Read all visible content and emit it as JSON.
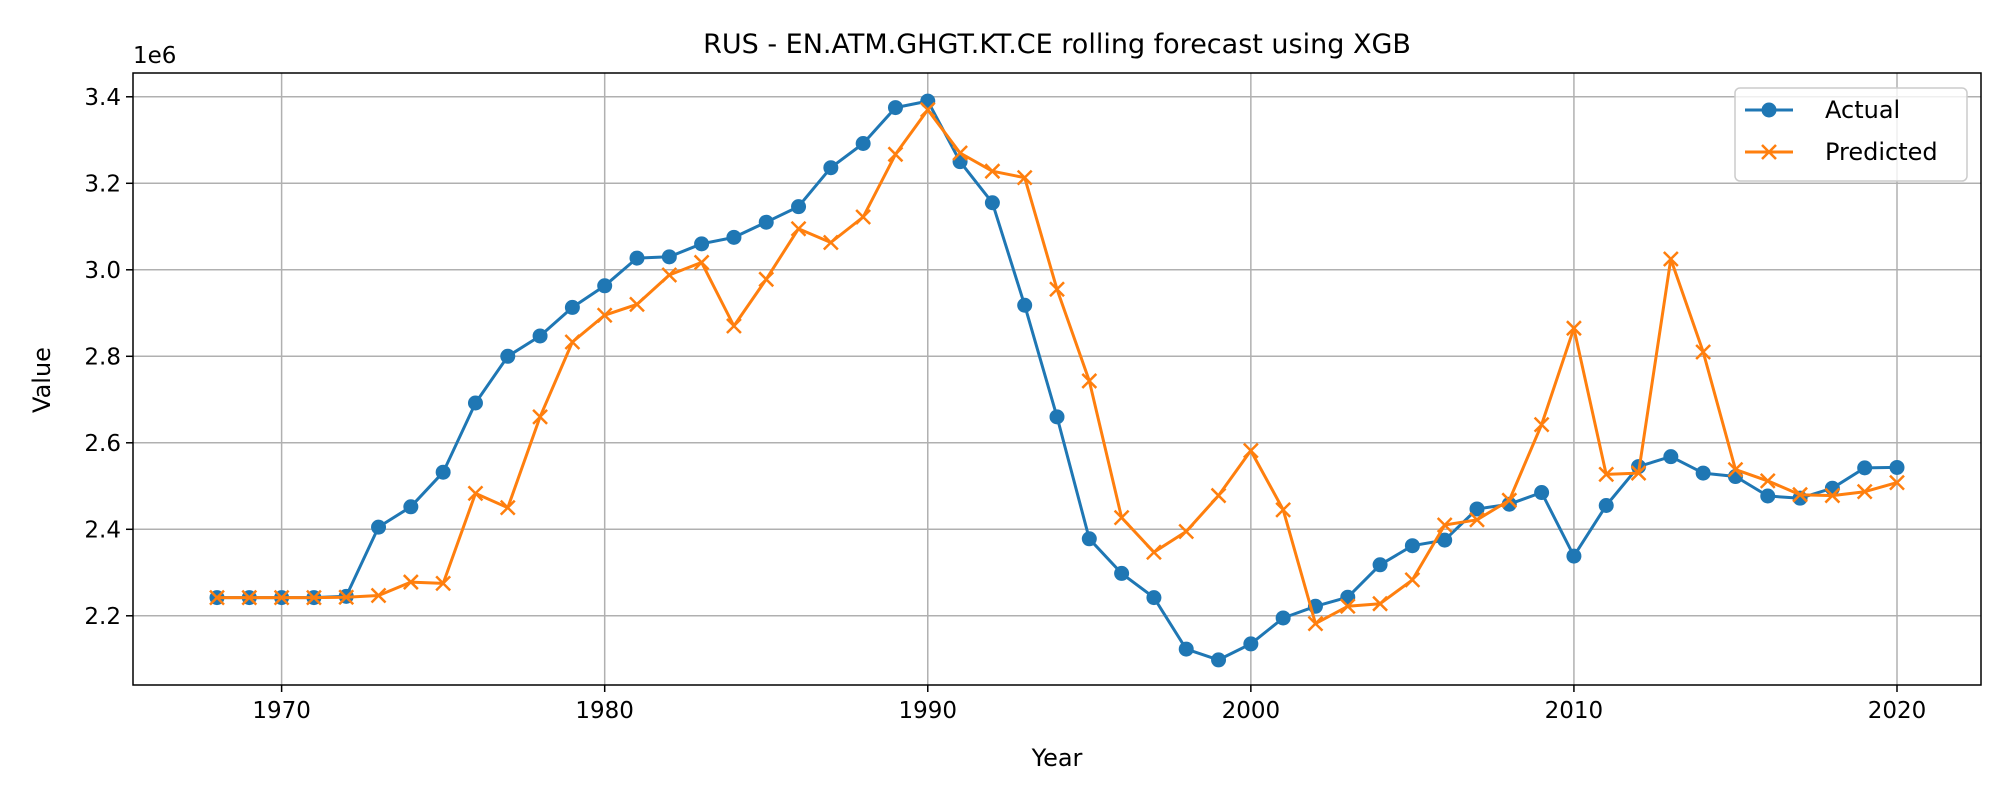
{
  "chart_data": {
    "type": "line",
    "title": "RUS - EN.ATM.GHGT.KT.CE rolling forecast using XGB",
    "xlabel": "Year",
    "ylabel": "Value",
    "y_multiplier_label": "1e6",
    "xlim": [
      1965.4,
      2022.6
    ],
    "ylim": [
      2.04,
      3.455
    ],
    "x_ticks": [
      1970,
      1980,
      1990,
      2000,
      2010,
      2020
    ],
    "y_ticks": [
      2.2,
      2.4,
      2.6,
      2.8,
      3.0,
      3.2,
      3.4
    ],
    "y_tick_labels": [
      "2.2",
      "2.4",
      "2.6",
      "2.8",
      "3.0",
      "3.2",
      "3.4"
    ],
    "grid": true,
    "legend_position": "upper right",
    "x": [
      1968,
      1969,
      1970,
      1971,
      1972,
      1973,
      1974,
      1975,
      1976,
      1977,
      1978,
      1979,
      1980,
      1981,
      1982,
      1983,
      1984,
      1985,
      1986,
      1987,
      1988,
      1989,
      1990,
      1991,
      1992,
      1993,
      1994,
      1995,
      1996,
      1997,
      1998,
      1999,
      2000,
      2001,
      2002,
      2003,
      2004,
      2005,
      2006,
      2007,
      2008,
      2009,
      2010,
      2011,
      2012,
      2013,
      2014,
      2015,
      2016,
      2017,
      2018,
      2019,
      2020
    ],
    "series": [
      {
        "name": "Actual",
        "color": "#1f77b4",
        "marker": "circle",
        "values": [
          2.242,
          2.242,
          2.242,
          2.242,
          2.245,
          2.405,
          2.452,
          2.532,
          2.692,
          2.8,
          2.847,
          2.913,
          2.963,
          3.027,
          3.03,
          3.06,
          3.075,
          3.11,
          3.146,
          3.236,
          3.292,
          3.375,
          3.39,
          3.25,
          3.155,
          2.918,
          2.66,
          2.378,
          2.298,
          2.242,
          2.123,
          2.098,
          2.135,
          2.195,
          2.222,
          2.243,
          2.318,
          2.362,
          2.375,
          2.447,
          2.458,
          2.485,
          2.338,
          2.455,
          2.545,
          2.568,
          2.53,
          2.522,
          2.477,
          2.472,
          2.495,
          2.542,
          2.543
        ]
      },
      {
        "name": "Predicted",
        "color": "#ff7f0e",
        "marker": "x",
        "values": [
          2.242,
          2.242,
          2.242,
          2.242,
          2.243,
          2.247,
          2.278,
          2.275,
          2.483,
          2.45,
          2.66,
          2.833,
          2.895,
          2.92,
          2.988,
          3.017,
          2.87,
          2.978,
          3.095,
          3.063,
          3.122,
          3.267,
          3.37,
          3.27,
          3.228,
          3.213,
          2.955,
          2.743,
          2.427,
          2.347,
          2.395,
          2.478,
          2.582,
          2.445,
          2.182,
          2.222,
          2.228,
          2.283,
          2.41,
          2.422,
          2.467,
          2.642,
          2.865,
          2.527,
          2.53,
          3.025,
          2.81,
          2.538,
          2.512,
          2.48,
          2.478,
          2.487,
          2.508
        ]
      }
    ]
  }
}
